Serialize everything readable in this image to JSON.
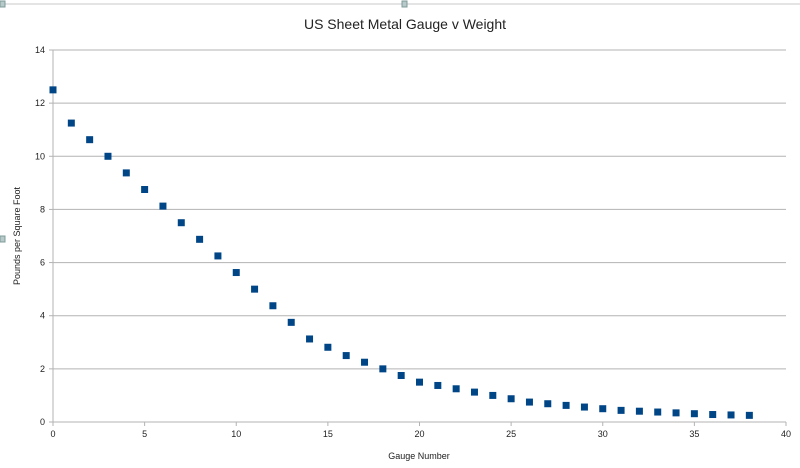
{
  "chart_data": {
    "type": "scatter",
    "title": "US Sheet Metal Gauge v Weight",
    "xlabel": "Gauge Number",
    "ylabel": "Pounds per Square Foot",
    "xlim": [
      0,
      40
    ],
    "ylim": [
      0,
      14
    ],
    "xticks": [
      0,
      5,
      10,
      15,
      20,
      25,
      30,
      35,
      40
    ],
    "yticks": [
      0,
      2,
      4,
      6,
      8,
      10,
      12,
      14
    ],
    "grid": "horizontal",
    "legend": "none",
    "marker_color": "#004586",
    "series": [
      {
        "x": [
          0,
          1,
          2,
          3,
          4,
          5,
          6,
          7,
          8,
          9,
          10,
          11,
          12,
          13,
          14,
          15,
          16,
          17,
          18,
          19,
          20,
          21,
          22,
          23,
          24,
          25,
          26,
          27,
          28,
          29,
          30,
          31,
          32,
          33,
          34,
          35,
          36,
          37,
          38
        ],
        "values": [
          12.5,
          11.25,
          10.625,
          10.0,
          9.375,
          8.75,
          8.125,
          7.5,
          6.875,
          6.25,
          5.625,
          5.0,
          4.375,
          3.75,
          3.125,
          2.8125,
          2.5,
          2.25,
          2.0,
          1.75,
          1.5,
          1.375,
          1.25,
          1.125,
          1.0,
          0.875,
          0.75,
          0.6875,
          0.625,
          0.5625,
          0.5,
          0.4375,
          0.40625,
          0.375,
          0.34375,
          0.3125,
          0.28125,
          0.265625,
          0.25
        ]
      }
    ]
  }
}
